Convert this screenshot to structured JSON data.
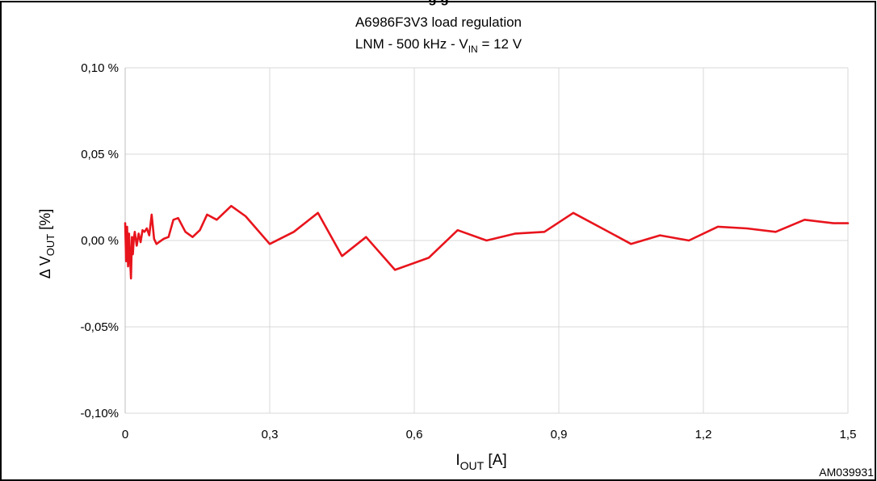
{
  "header": {
    "caption_fragment": "g                                                          g"
  },
  "chart_data": {
    "type": "line",
    "title_line1": "A6986F3V3  load regulation",
    "title_line2_prefix": "LNM - 500 kHz - V",
    "title_line2_sub": "IN",
    "title_line2_suffix": " = 12 V",
    "xlabel_main": "I",
    "xlabel_sub": "OUT",
    "xlabel_unit": "  [A]",
    "ylabel_delta": "Δ",
    "ylabel_main": "V",
    "ylabel_sub": "OUT",
    "ylabel_unit": "  [%]",
    "xlim": [
      0,
      1.5
    ],
    "ylim": [
      -0.1,
      0.1
    ],
    "x_ticks": [
      0,
      0.3,
      0.6,
      0.9,
      1.2,
      1.5
    ],
    "x_tick_labels": [
      "0",
      "0,3",
      "0,6",
      "0,9",
      "1,2",
      "1,5"
    ],
    "y_ticks": [
      0.1,
      0.05,
      0.0,
      -0.05,
      -0.1
    ],
    "y_tick_labels": [
      "0,10 %",
      "0,05 %",
      "0,00 %",
      "-0,05%",
      "-0,10%"
    ],
    "grid": true,
    "series": [
      {
        "color": "#e8141c",
        "x": [
          0,
          0.002,
          0.004,
          0.006,
          0.008,
          0.01,
          0.012,
          0.014,
          0.016,
          0.018,
          0.02,
          0.024,
          0.028,
          0.032,
          0.036,
          0.04,
          0.045,
          0.05,
          0.055,
          0.06,
          0.065,
          0.07,
          0.08,
          0.09,
          0.1,
          0.11,
          0.125,
          0.14,
          0.155,
          0.17,
          0.19,
          0.22,
          0.25,
          0.3,
          0.35,
          0.4,
          0.45,
          0.5,
          0.56,
          0.63,
          0.69,
          0.75,
          0.81,
          0.87,
          0.93,
          0.99,
          1.05,
          1.11,
          1.17,
          1.23,
          1.29,
          1.35,
          1.41,
          1.47,
          1.5
        ],
        "y": [
          0.01,
          -0.012,
          0.008,
          -0.015,
          0.004,
          -0.01,
          -0.022,
          0.002,
          -0.008,
          0.001,
          0.005,
          -0.003,
          0.004,
          -0.001,
          0.006,
          0.005,
          0.007,
          0.003,
          0.015,
          0.001,
          -0.002,
          -0.001,
          0.001,
          0.002,
          0.012,
          0.013,
          0.005,
          0.002,
          0.006,
          0.015,
          0.012,
          0.02,
          0.014,
          -0.002,
          0.005,
          0.016,
          -0.009,
          0.002,
          -0.017,
          -0.01,
          0.006,
          0.0,
          0.004,
          0.005,
          0.016,
          0.007,
          -0.002,
          0.003,
          0.0,
          0.008,
          0.007,
          0.005,
          0.012,
          0.01,
          0.01
        ]
      }
    ]
  },
  "figure_id": "AM039931"
}
